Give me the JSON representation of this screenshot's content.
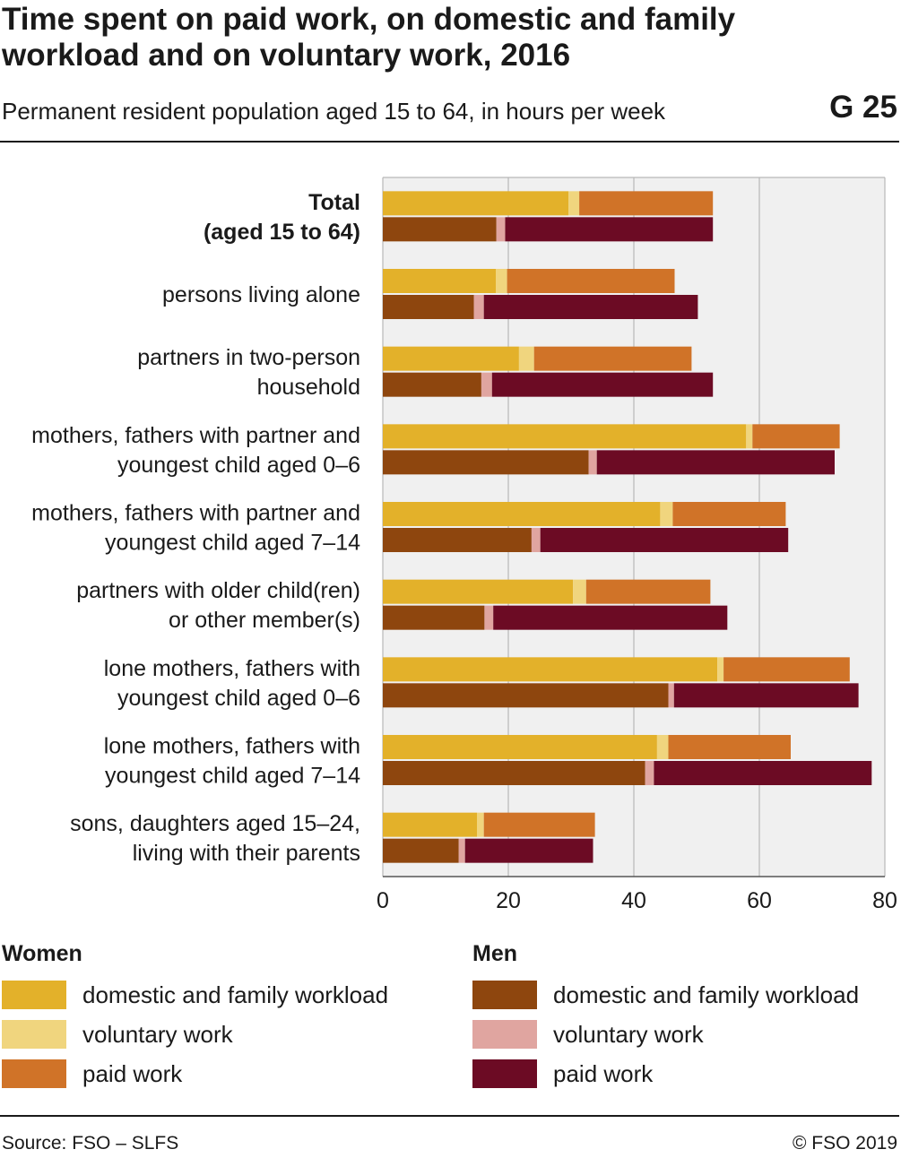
{
  "header": {
    "title": "Time spent on paid work, on domestic and family workload and on voluntary work, 2016",
    "subtitle": "Permanent resident population aged 15 to 64, in hours per week",
    "figure_id": "G 25"
  },
  "footer": {
    "source": "Source: FSO – SLFS",
    "copyright": "© FSO 2019"
  },
  "colors": {
    "women_domestic": "#e3b12a",
    "women_voluntary": "#f0d57e",
    "women_paid": "#d07328",
    "men_domestic": "#8e460e",
    "men_voluntary": "#e0a5a0",
    "men_paid": "#6c0b24",
    "plot_bg": "#f0f0f0",
    "grid": "#b8b8b8"
  },
  "legend": [
    {
      "group": "Women",
      "items": [
        {
          "label": "domestic and family workload",
          "color": "#e3b12a"
        },
        {
          "label": "voluntary work",
          "color": "#f0d57e"
        },
        {
          "label": "paid work",
          "color": "#d07328"
        }
      ]
    },
    {
      "group": "Men",
      "items": [
        {
          "label": "domestic and family workload",
          "color": "#8e460e"
        },
        {
          "label": "voluntary work",
          "color": "#e0a5a0"
        },
        {
          "label": "paid work",
          "color": "#6c0b24"
        }
      ]
    }
  ],
  "chart_data": {
    "type": "bar",
    "orientation": "horizontal",
    "stacked": true,
    "xlim": [
      0,
      80
    ],
    "xticks": [
      0,
      20,
      40,
      60,
      80
    ],
    "grid": true,
    "legend_position": "bottom",
    "categories": [
      {
        "lines": [
          "Total",
          "(aged 15 to 64)"
        ],
        "bold": true
      },
      {
        "lines": [
          "persons living alone"
        ]
      },
      {
        "lines": [
          "partners in two-person",
          "household"
        ]
      },
      {
        "lines": [
          "mothers, fathers with partner and",
          "youngest child aged 0–6"
        ]
      },
      {
        "lines": [
          "mothers, fathers with partner and",
          "youngest child aged 7–14"
        ]
      },
      {
        "lines": [
          "partners with older child(ren)",
          "or other member(s)"
        ]
      },
      {
        "lines": [
          "lone mothers, fathers with",
          "youngest child aged 0–6"
        ]
      },
      {
        "lines": [
          "lone mothers, fathers with",
          "youngest child aged 7–14"
        ]
      },
      {
        "lines": [
          "sons, daughters aged 15–24,",
          "living with their parents"
        ]
      }
    ],
    "series": [
      {
        "name": "Women",
        "segments": [
          "domestic and family workload",
          "voluntary work",
          "paid work"
        ],
        "values": [
          [
            29.6,
            1.7,
            21.3
          ],
          [
            18.0,
            1.8,
            26.7
          ],
          [
            21.7,
            2.4,
            25.1
          ],
          [
            57.9,
            1.0,
            13.9
          ],
          [
            44.2,
            2.0,
            18.0
          ],
          [
            30.3,
            2.1,
            19.8
          ],
          [
            53.3,
            1.0,
            20.1
          ],
          [
            43.7,
            1.8,
            19.5
          ],
          [
            15.0,
            1.1,
            17.7
          ]
        ]
      },
      {
        "name": "Men",
        "segments": [
          "domestic and family workload",
          "voluntary work",
          "paid work"
        ],
        "values": [
          [
            18.1,
            1.4,
            33.1
          ],
          [
            14.5,
            1.6,
            34.1
          ],
          [
            15.7,
            1.7,
            35.2
          ],
          [
            32.8,
            1.3,
            37.9
          ],
          [
            23.7,
            1.4,
            39.5
          ],
          [
            16.2,
            1.4,
            37.3
          ],
          [
            45.5,
            0.9,
            29.4
          ],
          [
            41.8,
            1.4,
            34.7
          ],
          [
            12.1,
            1.0,
            20.4
          ]
        ]
      }
    ]
  }
}
